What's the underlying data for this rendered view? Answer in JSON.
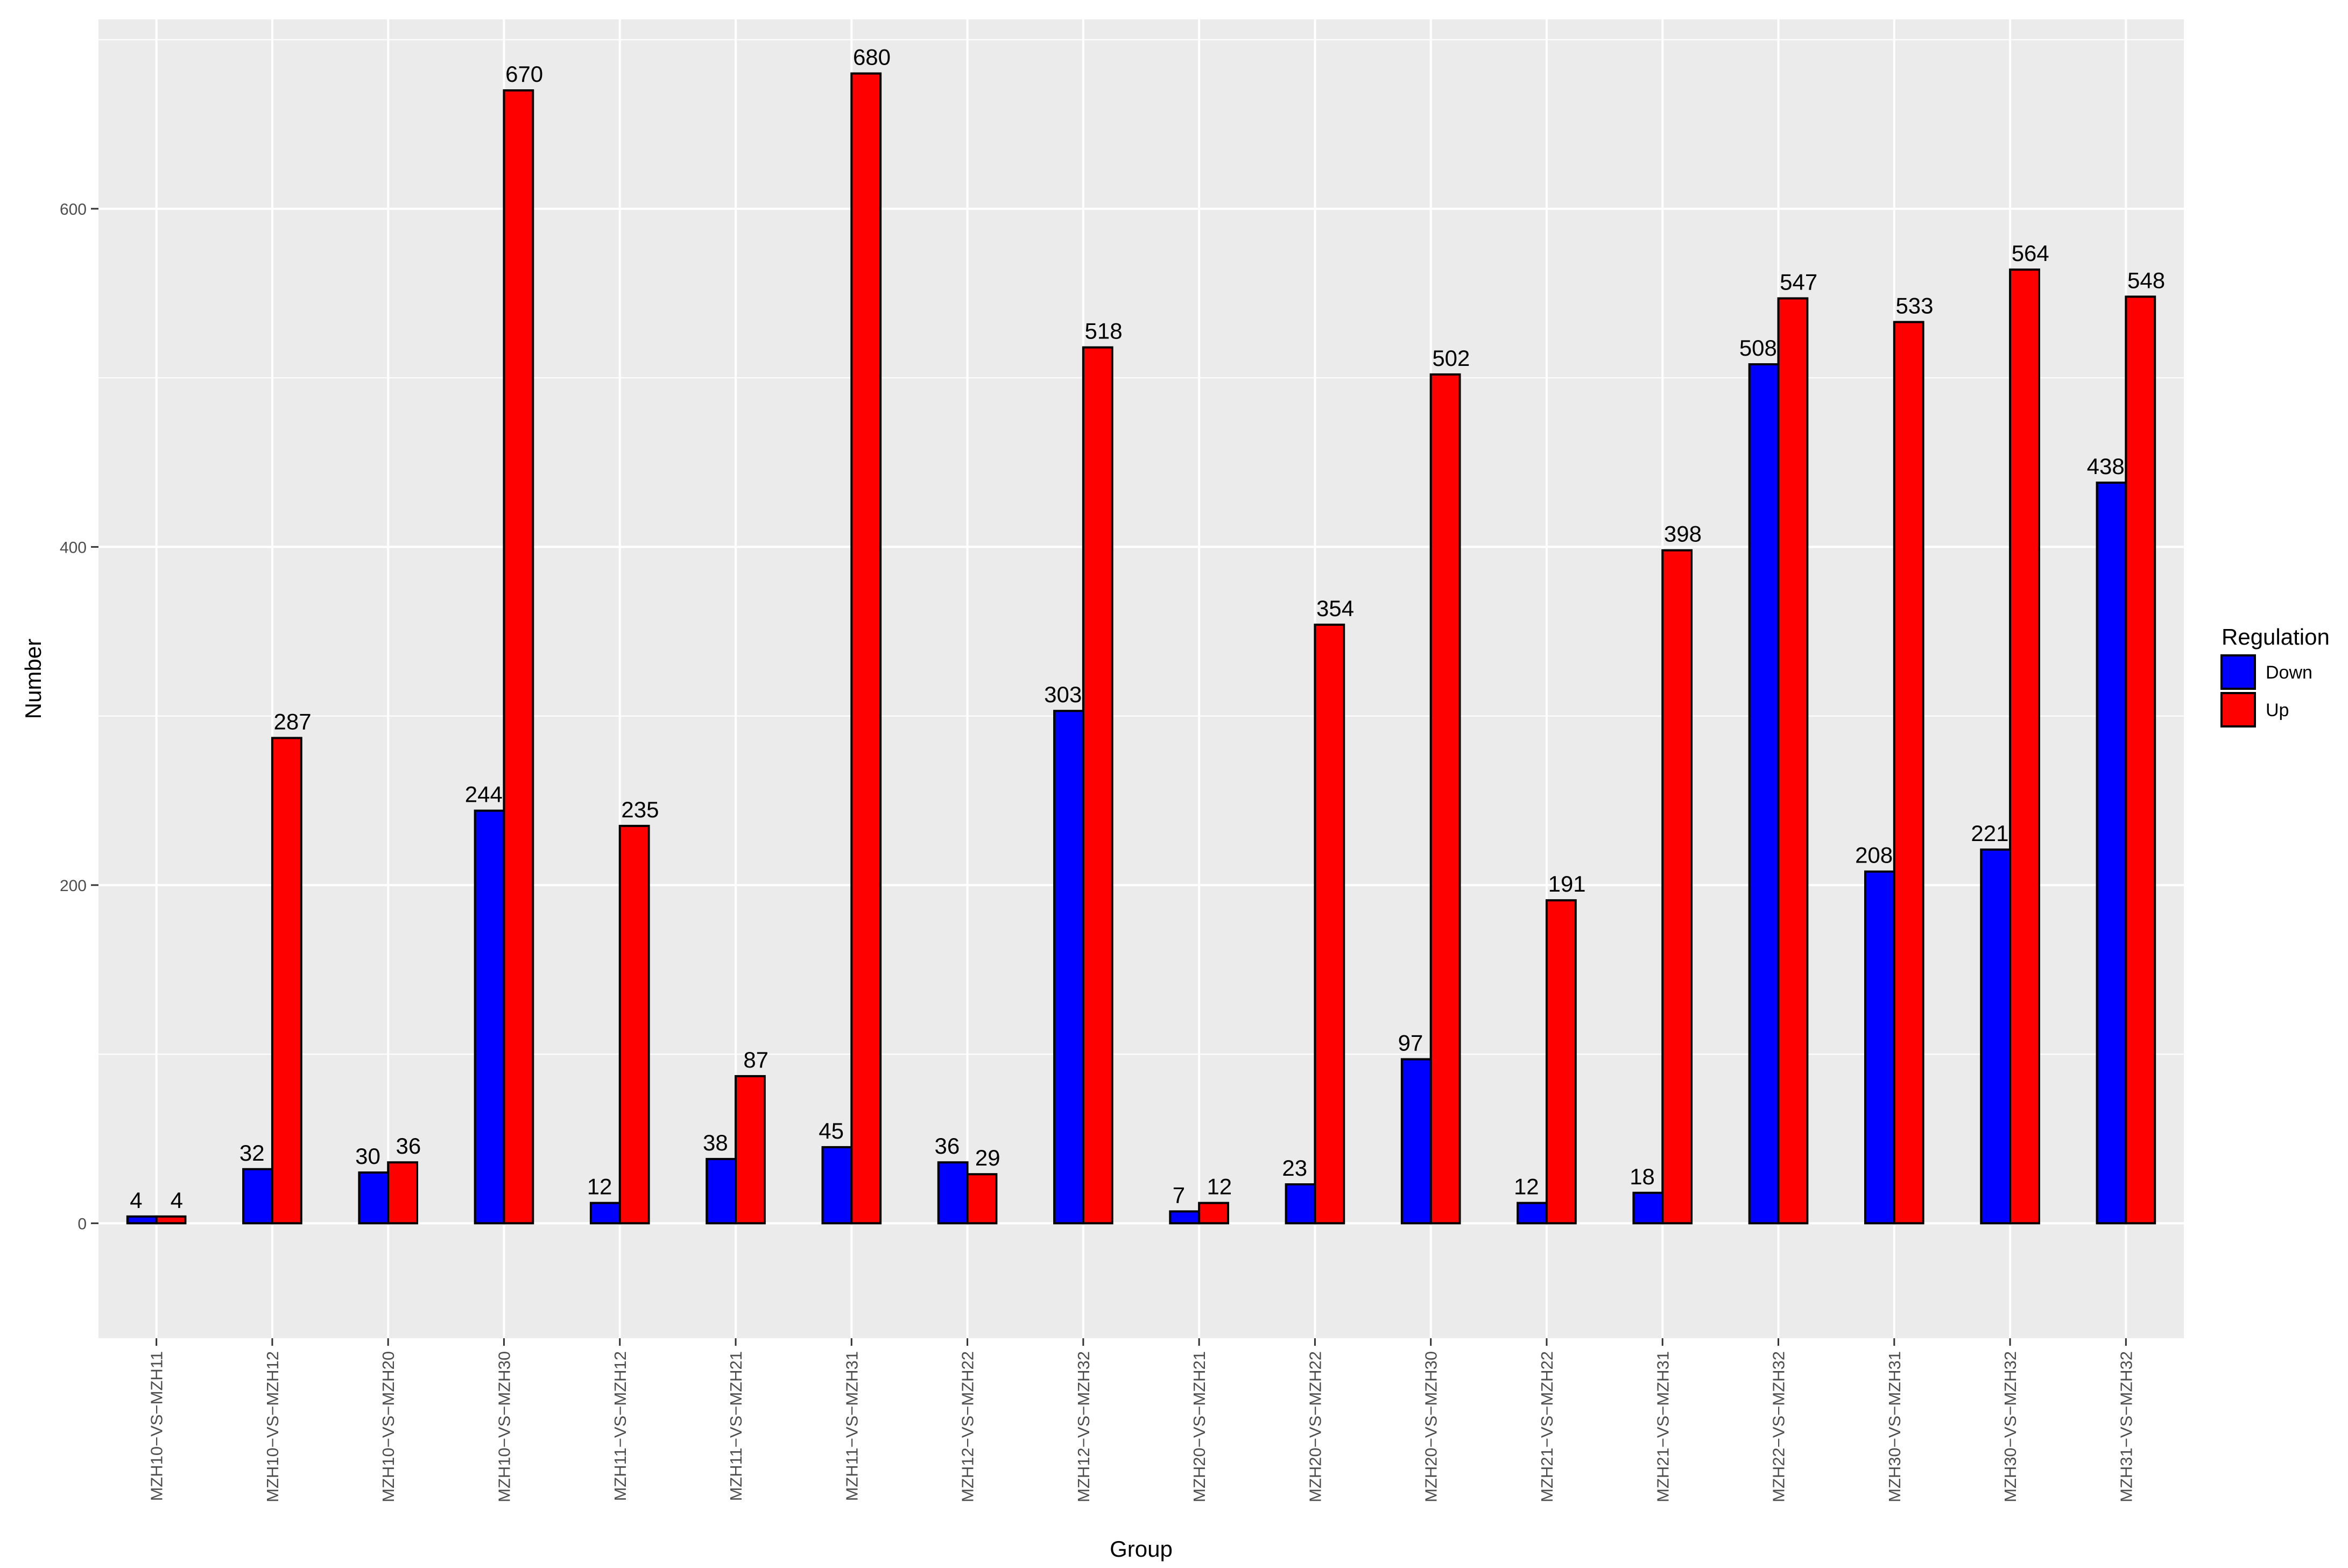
{
  "chart_data": {
    "type": "bar",
    "title": "",
    "xlabel": "Group",
    "ylabel": "Number",
    "ylim": [
      -68,
      712
    ],
    "yticks": [
      0,
      200,
      400,
      600
    ],
    "grid": true,
    "legend": {
      "title": "Regulation",
      "placement": "right"
    },
    "categories": [
      "MZH10−VS−MZH11",
      "MZH10−VS−MZH12",
      "MZH10−VS−MZH20",
      "MZH10−VS−MZH30",
      "MZH11−VS−MZH12",
      "MZH11−VS−MZH21",
      "MZH11−VS−MZH31",
      "MZH12−VS−MZH22",
      "MZH12−VS−MZH32",
      "MZH20−VS−MZH21",
      "MZH20−VS−MZH22",
      "MZH20−VS−MZH30",
      "MZH21−VS−MZH22",
      "MZH21−VS−MZH31",
      "MZH22−VS−MZH32",
      "MZH30−VS−MZH31",
      "MZH30−VS−MZH32",
      "MZH31−VS−MZH32"
    ],
    "series": [
      {
        "name": "Down",
        "color": "#0000ff",
        "values": [
          4,
          32,
          30,
          244,
          12,
          38,
          45,
          36,
          303,
          7,
          23,
          97,
          12,
          18,
          508,
          208,
          221,
          438
        ]
      },
      {
        "name": "Up",
        "color": "#ff0000",
        "values": [
          4,
          287,
          36,
          670,
          235,
          87,
          680,
          29,
          518,
          12,
          354,
          502,
          191,
          398,
          547,
          533,
          564,
          548
        ]
      }
    ]
  }
}
